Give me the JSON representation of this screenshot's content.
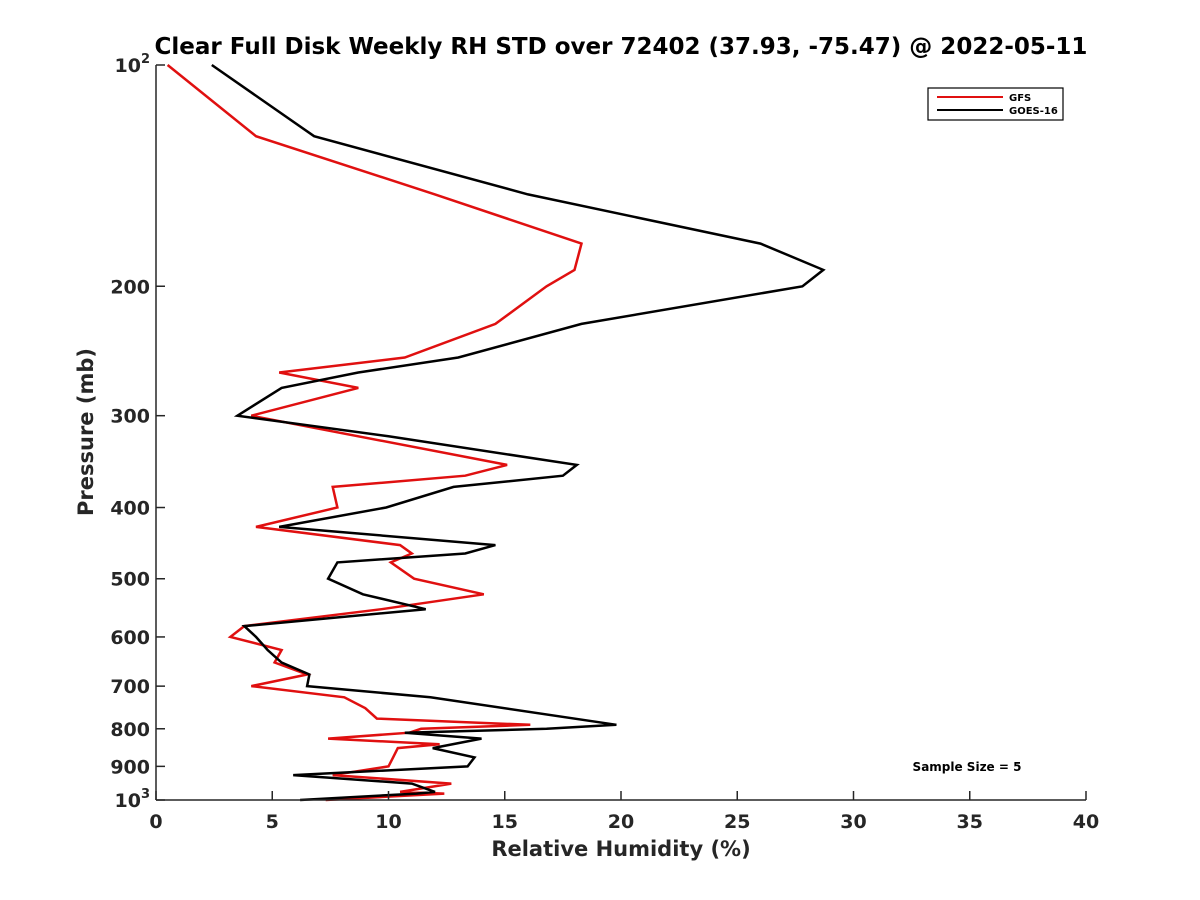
{
  "chart_data": {
    "type": "line",
    "title": "Clear Full Disk Weekly RH STD over 72402 (37.93, -75.47) @ 2022-05-11",
    "xlabel": "Relative Humidity (%)",
    "ylabel": "Pressure (mb)",
    "xlim": [
      0,
      40
    ],
    "ylim": [
      100,
      1000
    ],
    "yscale": "log",
    "yreversed": true,
    "x_ticks": [
      "0",
      "5",
      "10",
      "15",
      "20",
      "25",
      "30",
      "35",
      "40"
    ],
    "y_ticks": [
      {
        "value": 100,
        "label": "10",
        "sup": "2"
      },
      {
        "value": 200,
        "label": "200"
      },
      {
        "value": 300,
        "label": "300"
      },
      {
        "value": 400,
        "label": "400"
      },
      {
        "value": 500,
        "label": "500"
      },
      {
        "value": 600,
        "label": "600"
      },
      {
        "value": 700,
        "label": "700"
      },
      {
        "value": 800,
        "label": "800"
      },
      {
        "value": 900,
        "label": "900"
      },
      {
        "value": 1000,
        "label": "10",
        "sup": "3"
      }
    ],
    "legend_position": "top-right",
    "annotation": "Sample Size = 5",
    "series": [
      {
        "name": "GFS",
        "color": "#e01010",
        "points": [
          [
            0.5,
            100
          ],
          [
            4.3,
            125
          ],
          [
            12,
            150
          ],
          [
            18.3,
            175
          ],
          [
            18,
            190
          ],
          [
            16.8,
            200
          ],
          [
            14.6,
            225
          ],
          [
            10.7,
            250
          ],
          [
            5.3,
            262
          ],
          [
            8.7,
            275
          ],
          [
            4.1,
            300
          ],
          [
            15.1,
            350
          ],
          [
            13.3,
            362
          ],
          [
            7.6,
            375
          ],
          [
            7.8,
            400
          ],
          [
            4.3,
            425
          ],
          [
            10.5,
            450
          ],
          [
            11,
            462
          ],
          [
            10.1,
            475
          ],
          [
            11.1,
            500
          ],
          [
            14.1,
            525
          ],
          [
            9.7,
            550
          ],
          [
            3.8,
            580
          ],
          [
            3.2,
            600
          ],
          [
            5.4,
            625
          ],
          [
            5.1,
            650
          ],
          [
            6.5,
            675
          ],
          [
            4.1,
            700
          ],
          [
            8.1,
            725
          ],
          [
            9,
            750
          ],
          [
            9.5,
            775
          ],
          [
            16.1,
            790
          ],
          [
            11.4,
            800
          ],
          [
            10.9,
            810
          ],
          [
            7.4,
            825
          ],
          [
            12.2,
            840
          ],
          [
            10.4,
            850
          ],
          [
            10.2,
            875
          ],
          [
            10,
            900
          ],
          [
            7.6,
            925
          ],
          [
            12.7,
            950
          ],
          [
            10.5,
            975
          ],
          [
            12.4,
            980
          ],
          [
            7.3,
            1000
          ]
        ]
      },
      {
        "name": "GOES-16",
        "color": "#000000",
        "points": [
          [
            2.4,
            100
          ],
          [
            6.8,
            125
          ],
          [
            16,
            150
          ],
          [
            26,
            175
          ],
          [
            28.7,
            190
          ],
          [
            27.8,
            200
          ],
          [
            18.3,
            225
          ],
          [
            13,
            250
          ],
          [
            8.7,
            262
          ],
          [
            5.4,
            275
          ],
          [
            3.5,
            300
          ],
          [
            10,
            320
          ],
          [
            18.1,
            350
          ],
          [
            17.5,
            362
          ],
          [
            12.8,
            375
          ],
          [
            9.9,
            400
          ],
          [
            5.3,
            425
          ],
          [
            14.6,
            450
          ],
          [
            13.3,
            462
          ],
          [
            7.8,
            475
          ],
          [
            7.4,
            500
          ],
          [
            8.9,
            525
          ],
          [
            11.6,
            550
          ],
          [
            3.8,
            580
          ],
          [
            4.3,
            600
          ],
          [
            4.8,
            625
          ],
          [
            5.4,
            650
          ],
          [
            6.6,
            675
          ],
          [
            6.5,
            700
          ],
          [
            11.8,
            725
          ],
          [
            19.8,
            790
          ],
          [
            16.8,
            800
          ],
          [
            10.7,
            810
          ],
          [
            14,
            825
          ],
          [
            11.9,
            850
          ],
          [
            13.7,
            875
          ],
          [
            13.4,
            900
          ],
          [
            5.9,
            925
          ],
          [
            11,
            950
          ],
          [
            12,
            975
          ],
          [
            11.2,
            980
          ],
          [
            6.2,
            1000
          ]
        ]
      }
    ]
  }
}
